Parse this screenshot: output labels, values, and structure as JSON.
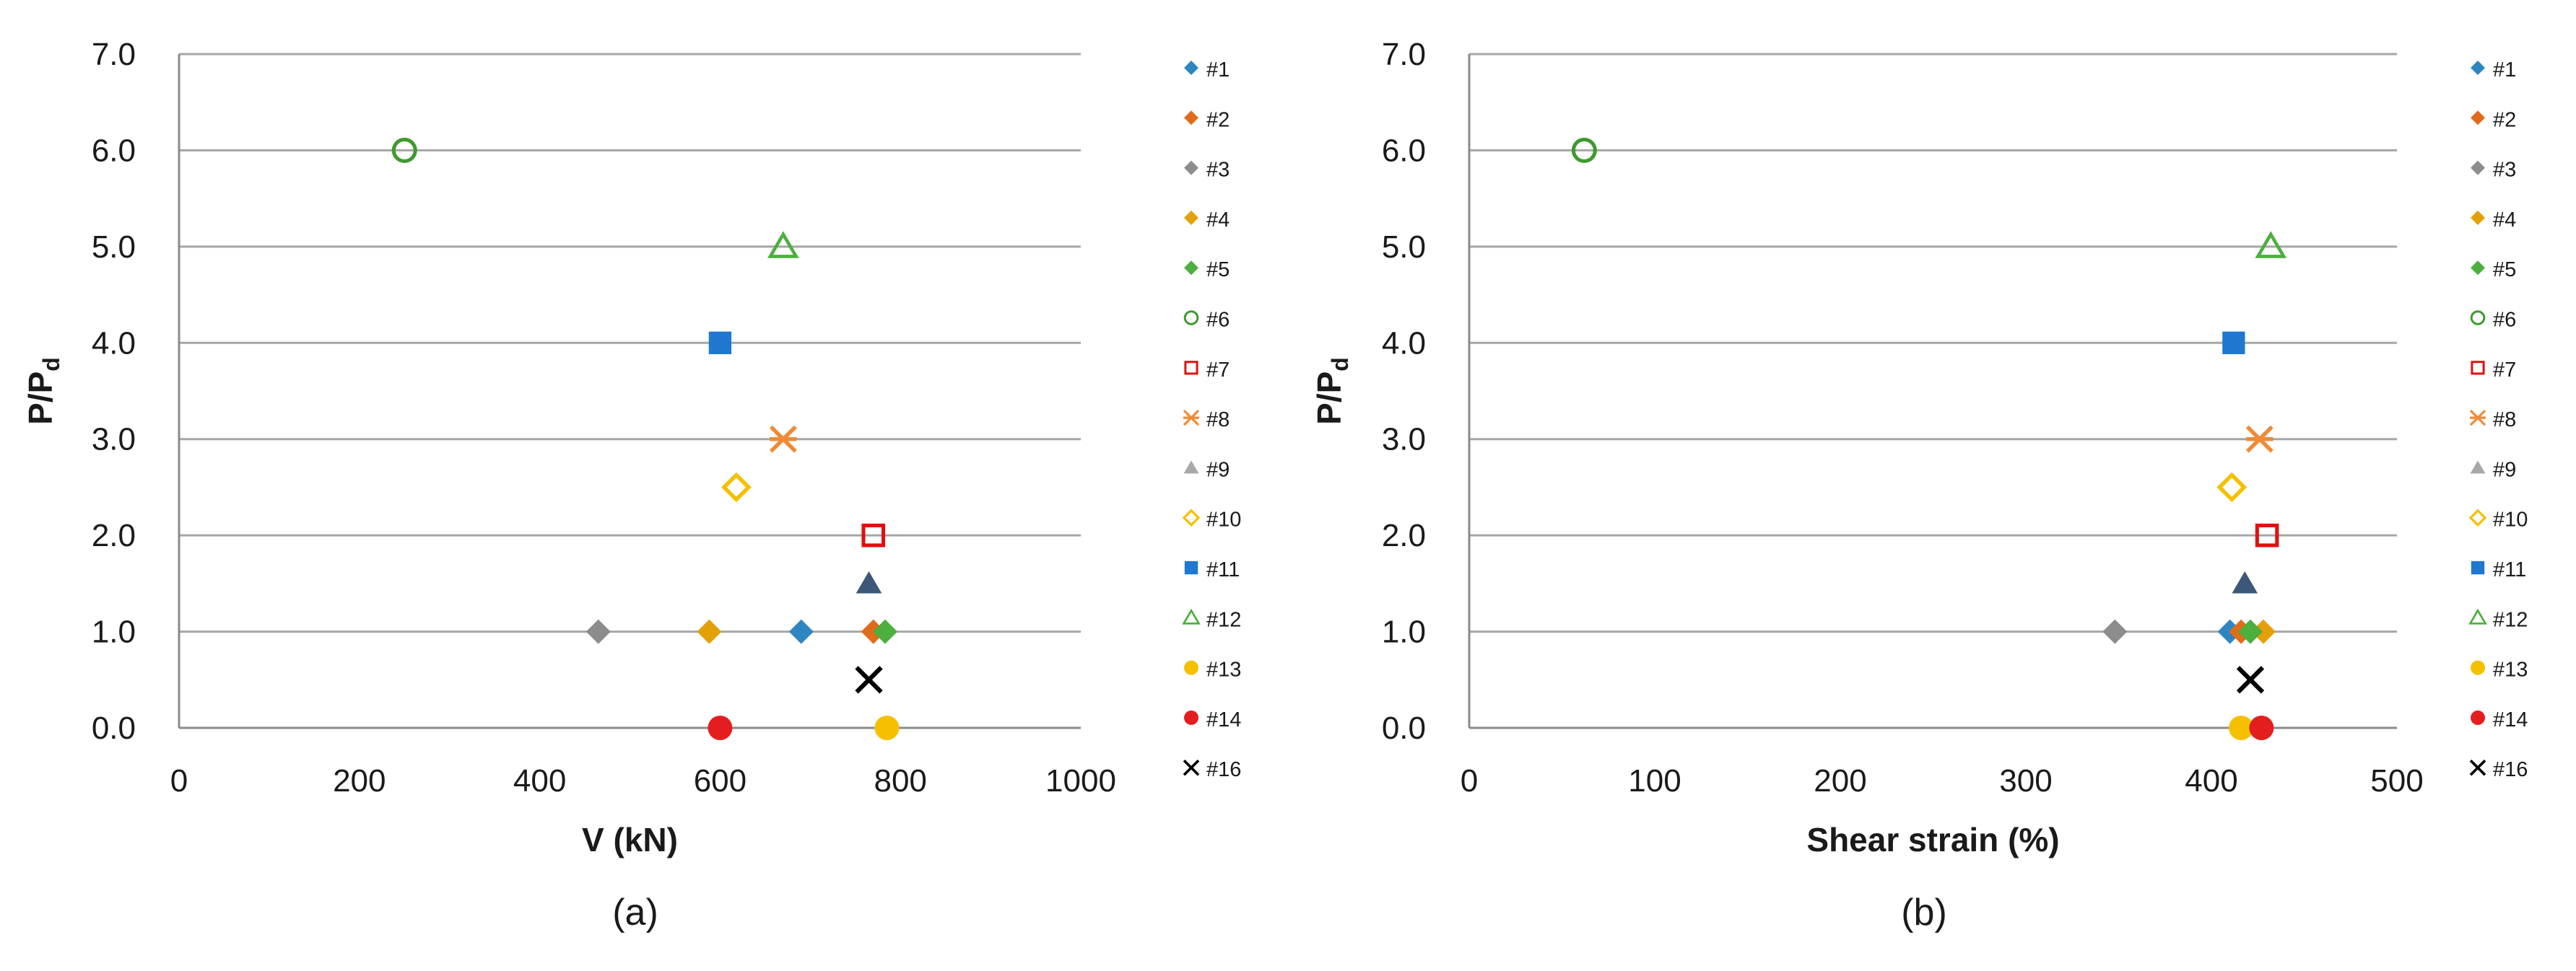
{
  "colors": {
    "#1": "#2E86C1",
    "#2": "#E06C1A",
    "#3": "#8C8C8C",
    "#4": "#E3A008",
    "#5": "#4CAF3E",
    "#6": "#3F9A2F",
    "#7": "#E01010",
    "#8": "#F08A36",
    "#9": "#A8A8A8",
    "#10": "#F5C000",
    "#11": "#1F77D0",
    "#12": "#4CAF3E",
    "#13": "#F5C000",
    "#14": "#E41E1E",
    "#15": "#3D5778",
    "#16": "#000000"
  },
  "chart_data": [
    {
      "type": "scatter",
      "caption": "(a)",
      "xlabel": "V (kN)",
      "ylabel": "P/P",
      "ylabel_sub": "d",
      "xlim": [
        0,
        1000
      ],
      "ylim": [
        0,
        7
      ],
      "xticks": [
        "0",
        "200",
        "400",
        "600",
        "800",
        "1000"
      ],
      "yticks": [
        "0.0",
        "1.0",
        "2.0",
        "3.0",
        "4.0",
        "5.0",
        "6.0",
        "7.0"
      ],
      "grid": "horizontal",
      "legend_position": "right",
      "series": [
        {
          "name": "#1",
          "marker": "diamond",
          "points": [
            [
              690,
              1.0
            ]
          ]
        },
        {
          "name": "#2",
          "marker": "diamond",
          "points": [
            [
              770,
              1.0
            ]
          ]
        },
        {
          "name": "#3",
          "marker": "diamond",
          "points": [
            [
              465,
              1.0
            ]
          ]
        },
        {
          "name": "#4",
          "marker": "diamond",
          "points": [
            [
              588,
              1.0
            ]
          ]
        },
        {
          "name": "#5",
          "marker": "diamond",
          "points": [
            [
              783,
              1.0
            ]
          ]
        },
        {
          "name": "#6",
          "marker": "circle-open",
          "points": [
            [
              250,
              6.0
            ]
          ]
        },
        {
          "name": "#7",
          "marker": "square-open",
          "points": [
            [
              770,
              2.0
            ]
          ]
        },
        {
          "name": "#8",
          "marker": "asterisk",
          "points": [
            [
              670,
              3.0
            ]
          ]
        },
        {
          "name": "#9",
          "marker": "triangle",
          "points": []
        },
        {
          "name": "#10",
          "marker": "diamond-open",
          "points": [
            [
              618,
              2.5
            ]
          ]
        },
        {
          "name": "#11",
          "marker": "square",
          "points": [
            [
              600,
              4.0
            ]
          ]
        },
        {
          "name": "#12",
          "marker": "triangle-open",
          "points": [
            [
              670,
              5.0
            ]
          ]
        },
        {
          "name": "#13",
          "marker": "circle",
          "points": [
            [
              785,
              0.0
            ]
          ]
        },
        {
          "name": "#14",
          "marker": "circle",
          "points": [
            [
              600,
              0.0
            ]
          ]
        },
        {
          "name": "",
          "marker": "triangle",
          "points": [
            [
              765,
              1.5
            ]
          ]
        },
        {
          "name": "#16",
          "marker": "cross",
          "points": [
            [
              765,
              0.5
            ]
          ]
        }
      ]
    },
    {
      "type": "scatter",
      "caption": "(b)",
      "xlabel": "Shear strain (%)",
      "ylabel": "P/P",
      "ylabel_sub": "d",
      "xlim": [
        0,
        500
      ],
      "ylim": [
        0,
        7
      ],
      "xticks": [
        "0",
        "100",
        "200",
        "300",
        "400",
        "500"
      ],
      "yticks": [
        "0.0",
        "1.0",
        "2.0",
        "3.0",
        "4.0",
        "5.0",
        "6.0",
        "7.0"
      ],
      "grid": "horizontal",
      "legend_position": "right",
      "series": [
        {
          "name": "#1",
          "marker": "diamond",
          "points": [
            [
              410,
              1.0
            ]
          ]
        },
        {
          "name": "#2",
          "marker": "diamond",
          "points": [
            [
              416,
              1.0
            ]
          ]
        },
        {
          "name": "#3",
          "marker": "diamond",
          "points": [
            [
              348,
              1.0
            ]
          ]
        },
        {
          "name": "#4",
          "marker": "diamond",
          "points": [
            [
              428,
              1.0
            ]
          ]
        },
        {
          "name": "#5",
          "marker": "diamond",
          "points": [
            [
              421,
              1.0
            ]
          ]
        },
        {
          "name": "#6",
          "marker": "circle-open",
          "points": [
            [
              62,
              6.0
            ]
          ]
        },
        {
          "name": "#7",
          "marker": "square-open",
          "points": [
            [
              430,
              2.0
            ]
          ]
        },
        {
          "name": "#8",
          "marker": "asterisk",
          "points": [
            [
              426,
              3.0
            ]
          ]
        },
        {
          "name": "#9",
          "marker": "triangle",
          "points": []
        },
        {
          "name": "#10",
          "marker": "diamond-open",
          "points": [
            [
              411,
              2.5
            ]
          ]
        },
        {
          "name": "#11",
          "marker": "square",
          "points": [
            [
              412,
              4.0
            ]
          ]
        },
        {
          "name": "#12",
          "marker": "triangle-open",
          "points": [
            [
              432,
              5.0
            ]
          ]
        },
        {
          "name": "#13",
          "marker": "circle",
          "points": [
            [
              416,
              0.0
            ]
          ]
        },
        {
          "name": "#14",
          "marker": "circle",
          "points": [
            [
              427,
              0.0
            ]
          ]
        },
        {
          "name": "",
          "marker": "triangle",
          "points": [
            [
              418,
              1.5
            ]
          ]
        },
        {
          "name": "#16",
          "marker": "cross",
          "points": [
            [
              421,
              0.5
            ]
          ]
        }
      ]
    }
  ]
}
